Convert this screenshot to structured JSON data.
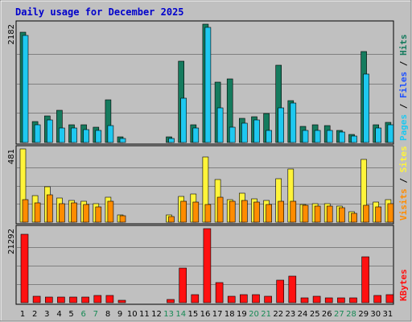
{
  "chart_data": {
    "type": "bar",
    "title": "Daily usage for December 2025",
    "colors": {
      "background": "#c0c0c0",
      "border": "#808080",
      "title": "#0000cc",
      "hits": "#157b5e",
      "files": "#1ec8f0",
      "sites": "#fff43a",
      "visits": "#ff8c00",
      "kbytes": "#ff1010",
      "weekend_label": "#178a55",
      "weekday_label": "#000000"
    },
    "categories": [
      "1",
      "2",
      "3",
      "4",
      "5",
      "6",
      "7",
      "8",
      "9",
      "10",
      "11",
      "12",
      "13",
      "14",
      "15",
      "16",
      "17",
      "18",
      "19",
      "20",
      "21",
      "22",
      "23",
      "24",
      "25",
      "26",
      "27",
      "28",
      "29",
      "30",
      "31"
    ],
    "weekend_days": [
      "6",
      "7",
      "13",
      "14",
      "20",
      "21",
      "27",
      "28"
    ],
    "panels": [
      {
        "id": "hits-files",
        "ytick": "2182",
        "ylim": [
          0,
          2182
        ],
        "legend": [
          "Hits",
          "Files",
          "Pages"
        ],
        "legend_colors": [
          "#157b5e",
          "#1e50ff",
          "#1ec8f0"
        ],
        "series": [
          {
            "name": "Hits",
            "color": "#157b5e",
            "values": [
              2040,
              380,
              490,
              600,
              330,
              320,
              280,
              790,
              110,
              0,
              0,
              0,
              110,
              1500,
              320,
              2182,
              1120,
              1170,
              450,
              480,
              540,
              1420,
              770,
              290,
              320,
              310,
              230,
              150,
              1670,
              330,
              370
            ]
          },
          {
            "name": "Files",
            "color": "#1ec8f0",
            "values": [
              1980,
              320,
              410,
              260,
              270,
              240,
              220,
              310,
              80,
              0,
              0,
              0,
              80,
              810,
              260,
              2130,
              640,
              280,
              360,
              410,
              220,
              640,
              730,
              220,
              230,
              220,
              190,
              120,
              1260,
              270,
              320
            ]
          }
        ]
      },
      {
        "id": "sites-visits",
        "ytick": "481",
        "ylim": [
          0,
          481
        ],
        "legend": [
          "Sites",
          "Visits"
        ],
        "legend_colors": [
          "#fff43a",
          "#ff8c00"
        ],
        "series": [
          {
            "name": "Sites",
            "color": "#fff43a",
            "values": [
              481,
              175,
              235,
              160,
              145,
              140,
              120,
              165,
              50,
              0,
              0,
              0,
              45,
              170,
              185,
              430,
              280,
              150,
              190,
              155,
              145,
              285,
              350,
              115,
              120,
              120,
              105,
              70,
              410,
              130,
              150
            ]
          },
          {
            "name": "Visits",
            "color": "#ff8c00",
            "values": [
              150,
              125,
              180,
              120,
              125,
              115,
              100,
              140,
              40,
              0,
              0,
              0,
              35,
              140,
              130,
              115,
              165,
              140,
              145,
              130,
              115,
              140,
              140,
              110,
              105,
              105,
              95,
              60,
              110,
              100,
              120
            ]
          }
        ]
      },
      {
        "id": "kbytes",
        "ytick": "21292",
        "ylim": [
          0,
          21292
        ],
        "legend": [
          "KBytes"
        ],
        "legend_colors": [
          "#ff1010"
        ],
        "series": [
          {
            "name": "KBytes",
            "color": "#ff1010",
            "values": [
              19600,
              1900,
              1700,
              1600,
              1700,
              1700,
              2000,
              2000,
              800,
              0,
              0,
              0,
              900,
              10000,
              2300,
              21292,
              5900,
              1900,
              2400,
              2300,
              1900,
              6400,
              7600,
              1300,
              1800,
              1400,
              1300,
              1500,
              13100,
              2000,
              2200
            ]
          }
        ]
      }
    ]
  }
}
